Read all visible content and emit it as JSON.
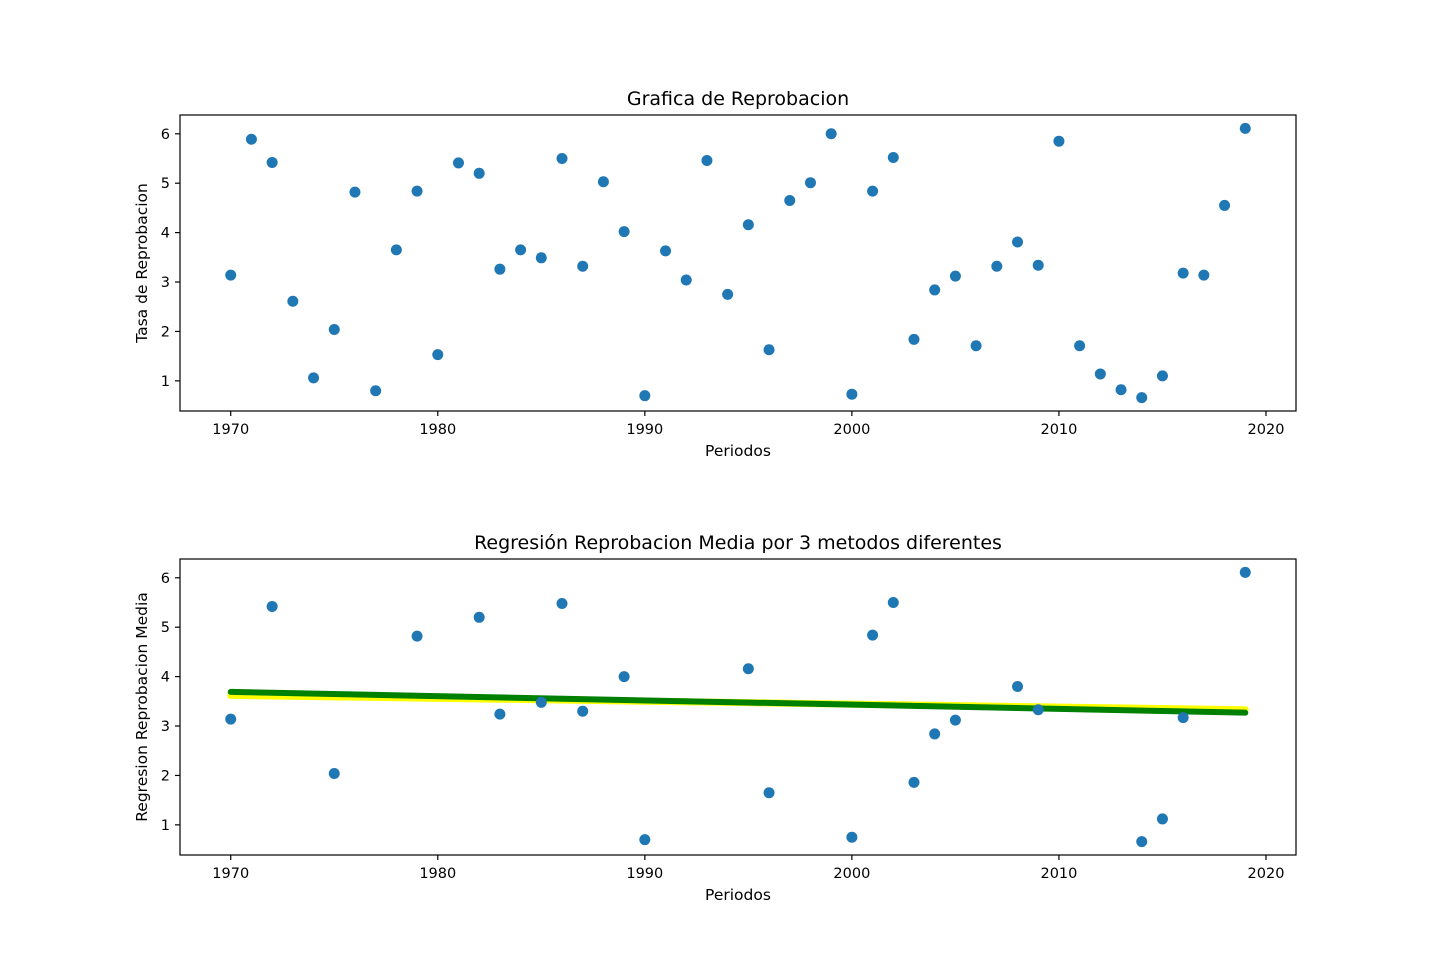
{
  "figure": {
    "background": "#ffffff"
  },
  "colors": {
    "points": "#1f77b4",
    "fit_green": "#008000",
    "fit_yellow": "#ffff00",
    "axes": "#000000"
  },
  "chart_data": [
    {
      "type": "scatter",
      "title": "Grafica de Reprobacion",
      "xlabel": "Periodos",
      "ylabel": "Tasa de Reprobacion",
      "xlim": [
        1967.55,
        2021.45
      ],
      "ylim": [
        0.39,
        6.38
      ],
      "xticks": [
        1970,
        1980,
        1990,
        2000,
        2010,
        2020
      ],
      "yticks": [
        1,
        2,
        3,
        4,
        5,
        6
      ],
      "grid": false,
      "series": [
        {
          "x": [
            1970,
            1971,
            1972,
            1973,
            1974,
            1975,
            1976,
            1977,
            1978,
            1979,
            1980,
            1981,
            1982,
            1983,
            1984,
            1985,
            1986,
            1987,
            1988,
            1989,
            1990,
            1991,
            1992,
            1993,
            1994,
            1995,
            1996,
            1997,
            1998,
            1999,
            2000,
            2001,
            2002,
            2003,
            2004,
            2005,
            2006,
            2007,
            2008,
            2009,
            2010,
            2011,
            2012,
            2013,
            2014,
            2015,
            2016,
            2017,
            2018,
            2019
          ],
          "y": [
            3.14,
            5.89,
            5.42,
            2.61,
            1.06,
            2.04,
            4.82,
            0.8,
            3.65,
            4.84,
            1.53,
            5.41,
            5.2,
            3.26,
            3.65,
            3.49,
            5.5,
            3.32,
            5.03,
            4.02,
            0.7,
            3.63,
            3.04,
            5.46,
            2.75,
            4.16,
            1.63,
            4.65,
            5.01,
            6.0,
            0.73,
            4.84,
            5.52,
            1.84,
            2.84,
            3.12,
            1.71,
            3.32,
            3.81,
            3.34,
            5.85,
            1.71,
            1.14,
            0.82,
            0.66,
            1.1,
            3.18,
            3.14,
            4.55,
            6.11
          ]
        }
      ]
    },
    {
      "type": "scatter",
      "title": "Regresión Reprobacion Media por 3 metodos diferentes",
      "xlabel": "Periodos",
      "ylabel": "Regresion Reprobacion Media",
      "xlim": [
        1967.55,
        2021.45
      ],
      "ylim": [
        0.39,
        6.38
      ],
      "xticks": [
        1970,
        1980,
        1990,
        2000,
        2010,
        2020
      ],
      "yticks": [
        1,
        2,
        3,
        4,
        5,
        6
      ],
      "grid": false,
      "series": [
        {
          "x": [
            1970,
            1972,
            1975,
            1979,
            1982,
            1983,
            1985,
            1986,
            1987,
            1989,
            1990,
            1995,
            1996,
            2000,
            2001,
            2002,
            2003,
            2004,
            2005,
            2008,
            2009,
            2014,
            2015,
            2016,
            2019
          ],
          "y": [
            3.14,
            5.42,
            2.04,
            4.82,
            5.2,
            3.24,
            3.48,
            5.48,
            3.3,
            4.0,
            0.7,
            4.16,
            1.65,
            0.75,
            4.84,
            5.5,
            1.86,
            2.84,
            3.12,
            3.8,
            3.33,
            0.66,
            1.12,
            3.17,
            6.11
          ]
        }
      ],
      "lines": [
        {
          "x": [
            1970,
            2019
          ],
          "y": [
            3.62,
            3.33
          ],
          "color": "#ffff00"
        },
        {
          "x": [
            1970,
            2019
          ],
          "y": [
            3.69,
            3.27
          ],
          "color": "#008000"
        }
      ]
    }
  ]
}
